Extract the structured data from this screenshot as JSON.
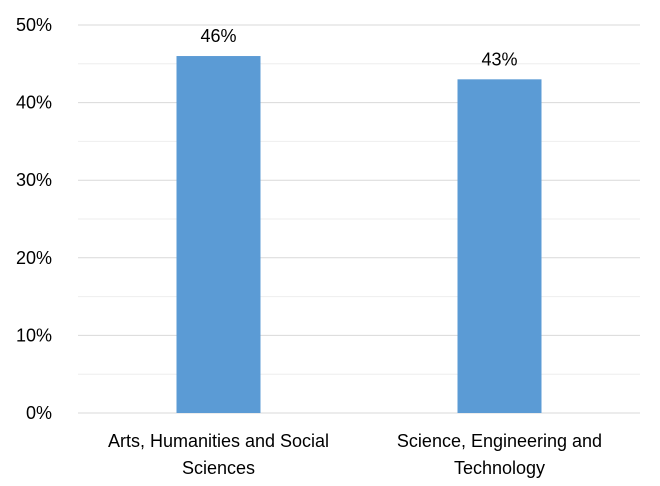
{
  "chart_data": {
    "type": "bar",
    "categories": [
      [
        "Arts, Humanities and Social",
        "Sciences"
      ],
      [
        "Science, Engineering and",
        "Technology"
      ]
    ],
    "values": [
      46,
      43
    ],
    "data_labels": [
      "46%",
      "43%"
    ],
    "ylim": [
      0,
      50
    ],
    "y_ticks": [
      0,
      10,
      20,
      30,
      40,
      50
    ],
    "y_tick_labels": [
      "0%",
      "10%",
      "20%",
      "30%",
      "40%",
      "50%"
    ],
    "grid": true,
    "legend": "none",
    "title": "",
    "xlabel": "",
    "ylabel": "",
    "colors": {
      "bar": "#5b9bd5",
      "major_grid": "#d9d9d9",
      "minor_grid": "#eeeeee",
      "axis": "#d9d9d9"
    }
  }
}
